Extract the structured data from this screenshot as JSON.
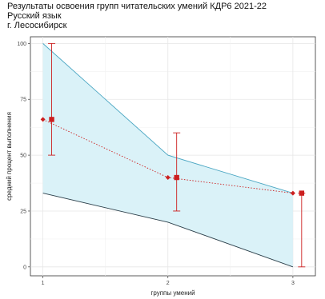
{
  "chart_data": {
    "type": "line",
    "title_lines": [
      "Результаты освоения групп читательских умений КДР6 2021-22",
      "Русский язык",
      "г. Лесосибирск"
    ],
    "xlabel": "группы умений",
    "ylabel": "средний процент выполнения",
    "x": [
      1,
      2,
      3
    ],
    "x_tick_labels": [
      "1",
      "2",
      "3"
    ],
    "xlim": [
      0.9,
      3.18
    ],
    "ylim": [
      -4,
      103
    ],
    "y_ticks": [
      0,
      25,
      50,
      75,
      100
    ],
    "grid": true,
    "band": {
      "upper": [
        100,
        50,
        33
      ],
      "lower": [
        33,
        20,
        0
      ],
      "fill": "#daf2f8",
      "upper_color": "#4aa6c2",
      "lower_color": "#2b3f4a"
    },
    "point_series": [
      {
        "marker": "diamond",
        "x": [
          1,
          2,
          3
        ],
        "y": [
          66,
          40,
          33
        ],
        "color": "#cc1f1f"
      }
    ],
    "errorbar_series": [
      {
        "marker": "square",
        "x": [
          1.07,
          2.07,
          3.07
        ],
        "y": [
          66,
          40,
          33
        ],
        "low": [
          50,
          25,
          0
        ],
        "high": [
          100,
          60,
          33
        ],
        "color": "#cc1f1f"
      }
    ]
  }
}
